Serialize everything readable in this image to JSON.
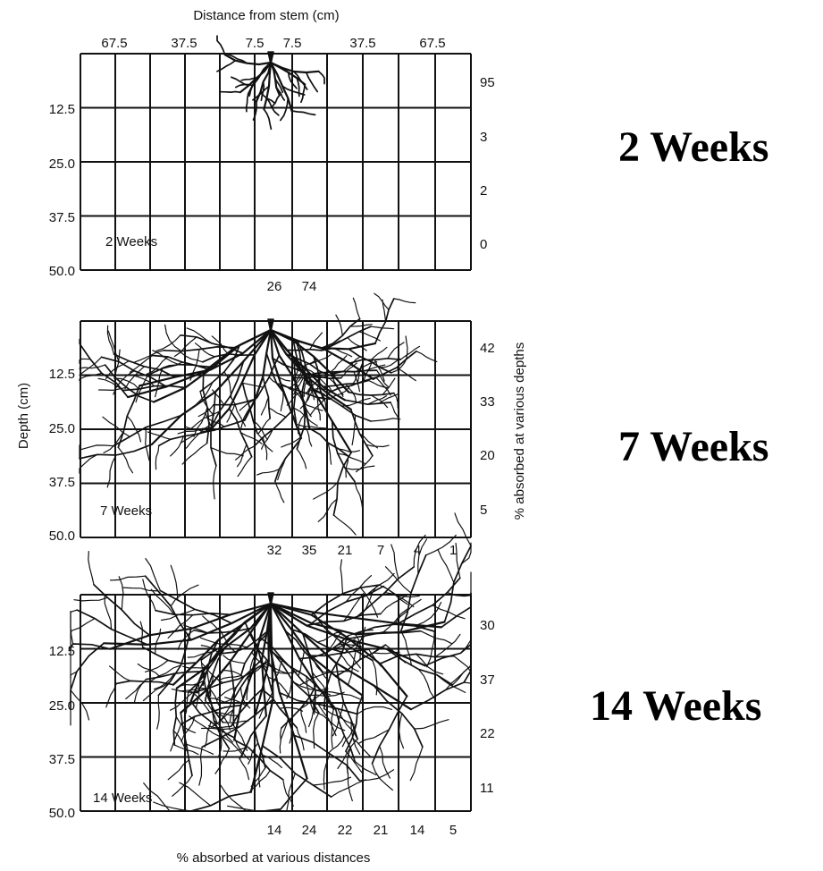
{
  "diagram": {
    "top_axis_title": "Distance from stem (cm)",
    "top_axis_ticks": [
      "67.5",
      "37.5",
      "7.5",
      "7.5",
      "37.5",
      "67.5"
    ],
    "y_axis_title": "Depth (cm)",
    "right_axis_title": "% absorbed at various depths",
    "bottom_axis_title": "% absorbed at various distances",
    "depth_ticks": [
      "12.5",
      "25.0",
      "37.5",
      "50.0"
    ],
    "panels": [
      {
        "inset_label": "2 Weeks",
        "big_label": "2 Weeks",
        "depth_percents": [
          "95",
          "3",
          "2",
          "0"
        ],
        "distance_percents": [
          "26",
          "74"
        ]
      },
      {
        "inset_label": "7 Weeks",
        "big_label": "7 Weeks",
        "depth_percents": [
          "42",
          "33",
          "20",
          "5"
        ],
        "distance_percents": [
          "32",
          "35",
          "21",
          "7",
          "4",
          "1"
        ]
      },
      {
        "inset_label": "14 Weeks",
        "big_label": "14 Weeks",
        "depth_percents": [
          "30",
          "37",
          "22",
          "11"
        ],
        "distance_percents": [
          "14",
          "24",
          "22",
          "21",
          "14",
          "5"
        ]
      }
    ]
  }
}
